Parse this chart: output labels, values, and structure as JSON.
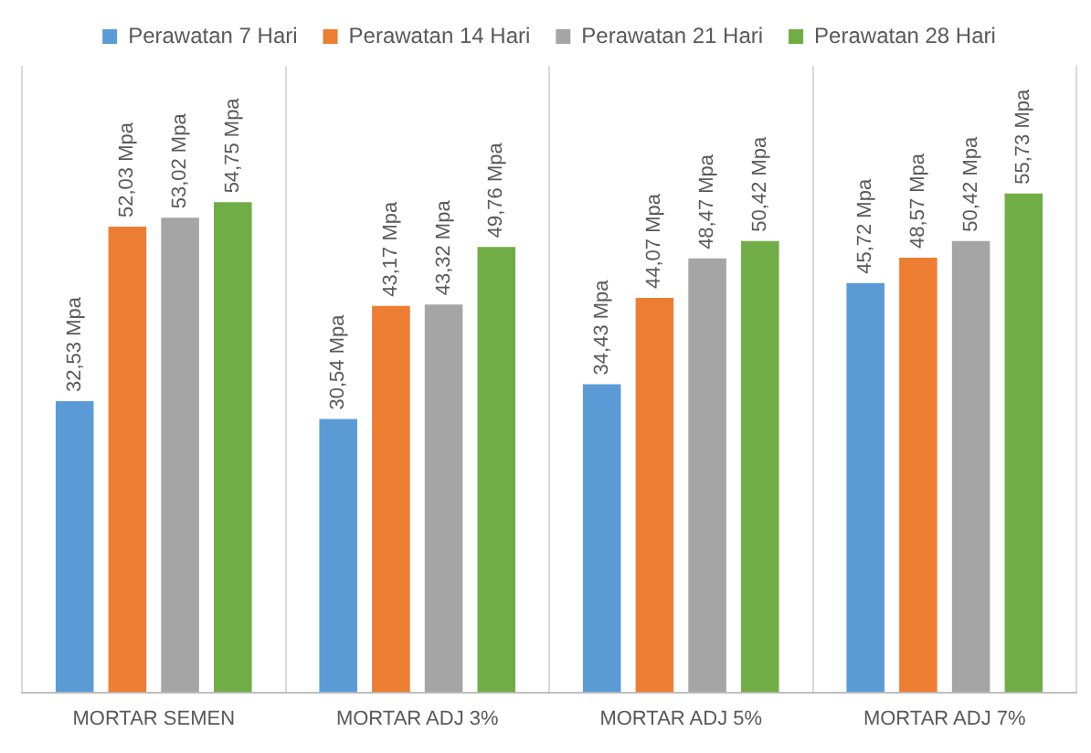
{
  "chart_data": {
    "type": "bar",
    "categories": [
      "MORTAR SEMEN",
      "MORTAR ADJ 3%",
      "MORTAR ADJ 5%",
      "MORTAR ADJ 7%"
    ],
    "series": [
      {
        "name": "Perawatan 7 Hari",
        "color": "#5b9bd5",
        "values": [
          32.53,
          30.54,
          34.43,
          45.72
        ],
        "value_labels": [
          "32,53 Mpa",
          "30,54 Mpa",
          "34,43 Mpa",
          "45,72 Mpa"
        ]
      },
      {
        "name": "Perawatan 14 Hari",
        "color": "#ed7d31",
        "values": [
          52.03,
          43.17,
          44.07,
          48.57
        ],
        "value_labels": [
          "52,03 Mpa",
          "43,17 Mpa",
          "44,07 Mpa",
          "48,57 Mpa"
        ]
      },
      {
        "name": "Perawatan 21 Hari",
        "color": "#a5a5a5",
        "values": [
          53.02,
          43.32,
          48.47,
          50.42
        ],
        "value_labels": [
          "53,02 Mpa",
          "43,32 Mpa",
          "48,47 Mpa",
          "50,42 Mpa"
        ]
      },
      {
        "name": "Perawatan 28 Hari",
        "color": "#70ad47",
        "values": [
          54.75,
          49.76,
          50.42,
          55.73
        ],
        "value_labels": [
          "54,75 Mpa",
          "49,76 Mpa",
          "50,42 Mpa",
          "55,73 Mpa"
        ]
      }
    ],
    "grid": "x",
    "legend": "top"
  }
}
